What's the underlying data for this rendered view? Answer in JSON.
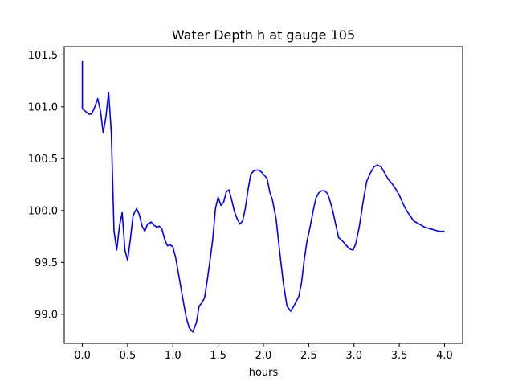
{
  "chart_data": {
    "type": "line",
    "title": "Water Depth h at gauge 105",
    "xlabel": "hours",
    "ylabel": "",
    "xlim": [
      -0.2,
      4.2
    ],
    "ylim": [
      98.72,
      101.58
    ],
    "xticks": [
      0.0,
      0.5,
      1.0,
      1.5,
      2.0,
      2.5,
      3.0,
      3.5,
      4.0
    ],
    "xtick_labels": [
      "0.0",
      "0.5",
      "1.0",
      "1.5",
      "2.0",
      "2.5",
      "3.0",
      "3.5",
      "4.0"
    ],
    "yticks": [
      99.0,
      99.5,
      100.0,
      100.5,
      101.0,
      101.5
    ],
    "ytick_labels": [
      "99.0",
      "99.5",
      "100.0",
      "100.5",
      "101.0",
      "101.5"
    ],
    "grid": false,
    "legend": "none",
    "series": [
      {
        "color": "#0000ff",
        "x": [
          0.0,
          0.0,
          0.03,
          0.07,
          0.1,
          0.13,
          0.17,
          0.2,
          0.23,
          0.26,
          0.29,
          0.32,
          0.35,
          0.38,
          0.41,
          0.44,
          0.47,
          0.5,
          0.53,
          0.56,
          0.6,
          0.63,
          0.66,
          0.69,
          0.72,
          0.76,
          0.79,
          0.82,
          0.85,
          0.88,
          0.91,
          0.94,
          0.97,
          1.0,
          1.03,
          1.06,
          1.09,
          1.12,
          1.15,
          1.18,
          1.22,
          1.26,
          1.29,
          1.32,
          1.35,
          1.38,
          1.41,
          1.44,
          1.47,
          1.5,
          1.53,
          1.56,
          1.59,
          1.62,
          1.65,
          1.68,
          1.71,
          1.74,
          1.77,
          1.8,
          1.83,
          1.86,
          1.89,
          1.92,
          1.95,
          1.98,
          2.01,
          2.04,
          2.07,
          2.1,
          2.14,
          2.18,
          2.22,
          2.26,
          2.3,
          2.33,
          2.36,
          2.39,
          2.42,
          2.45,
          2.48,
          2.51,
          2.55,
          2.58,
          2.61,
          2.64,
          2.68,
          2.71,
          2.74,
          2.77,
          2.8,
          2.83,
          2.87,
          2.91,
          2.95,
          2.99,
          3.02,
          3.06,
          3.1,
          3.14,
          3.18,
          3.22,
          3.26,
          3.3,
          3.34,
          3.38,
          3.42,
          3.46,
          3.5,
          3.54,
          3.58,
          3.62,
          3.66,
          3.7,
          3.74,
          3.78,
          3.82,
          3.86,
          3.9,
          3.94,
          3.97,
          4.0
        ],
        "y": [
          101.44,
          100.98,
          100.96,
          100.93,
          100.93,
          100.98,
          101.08,
          100.96,
          100.75,
          100.9,
          101.14,
          100.75,
          99.8,
          99.62,
          99.85,
          99.98,
          99.62,
          99.52,
          99.72,
          99.95,
          100.02,
          99.96,
          99.85,
          99.8,
          99.87,
          99.89,
          99.86,
          99.84,
          99.85,
          99.82,
          99.72,
          99.66,
          99.67,
          99.65,
          99.55,
          99.4,
          99.25,
          99.1,
          98.96,
          98.87,
          98.83,
          98.92,
          99.08,
          99.11,
          99.16,
          99.33,
          99.52,
          99.72,
          100.02,
          100.13,
          100.05,
          100.08,
          100.18,
          100.2,
          100.1,
          99.99,
          99.92,
          99.87,
          99.9,
          100.02,
          100.2,
          100.35,
          100.38,
          100.39,
          100.39,
          100.37,
          100.34,
          100.31,
          100.18,
          100.1,
          99.92,
          99.6,
          99.3,
          99.08,
          99.03,
          99.07,
          99.12,
          99.17,
          99.3,
          99.52,
          99.7,
          99.82,
          100.0,
          100.12,
          100.17,
          100.19,
          100.19,
          100.16,
          100.08,
          99.98,
          99.86,
          99.74,
          99.71,
          99.67,
          99.63,
          99.62,
          99.68,
          99.85,
          100.08,
          100.28,
          100.36,
          100.42,
          100.44,
          100.42,
          100.36,
          100.3,
          100.26,
          100.21,
          100.15,
          100.07,
          100.0,
          99.95,
          99.9,
          99.88,
          99.86,
          99.84,
          99.83,
          99.82,
          99.81,
          99.8,
          99.8,
          99.8
        ],
        "note_points_override": true
      }
    ]
  }
}
